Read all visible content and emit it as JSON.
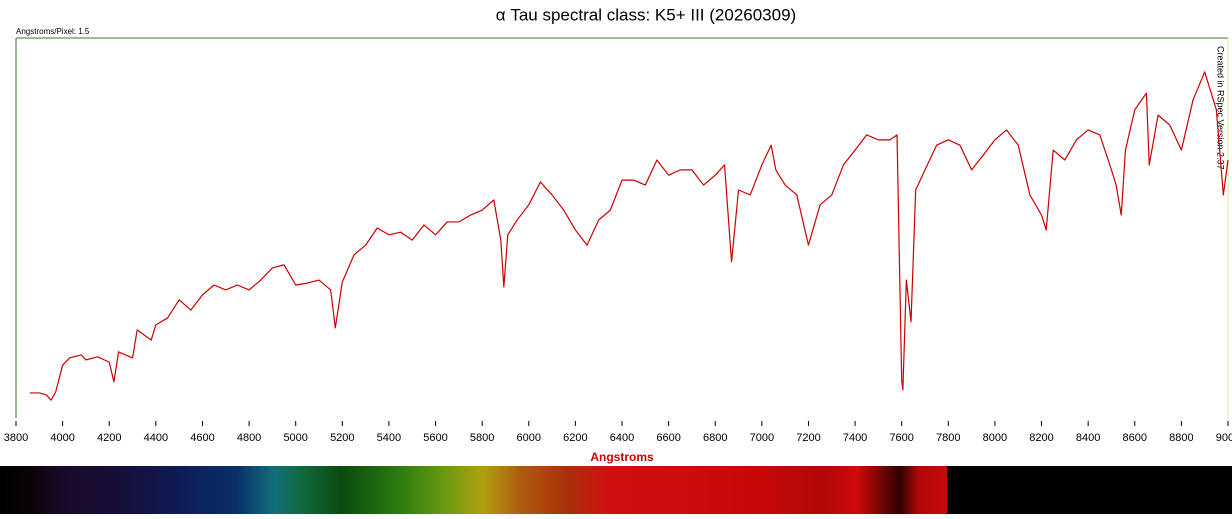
{
  "chart_data": {
    "type": "line",
    "title": "α Tau spectral class: K5+ III (20260309)",
    "xlabel": "Angstroms",
    "annotations": [
      "Angstroms/Pixel: 1.5",
      "Created in RSpec Version 2.37"
    ],
    "xlim": [
      3800,
      9000
    ],
    "ylim": [
      0,
      1
    ],
    "xticks": [
      3800,
      4000,
      4200,
      4400,
      4600,
      4800,
      5000,
      5200,
      5400,
      5600,
      5800,
      6000,
      6200,
      6400,
      6600,
      6800,
      7000,
      7200,
      7400,
      7600,
      7800,
      8000,
      8200,
      8400,
      8600,
      8800,
      9000
    ],
    "series": [
      {
        "color": "#cc0000",
        "x": [
          3860,
          3900,
          3930,
          3950,
          3970,
          4000,
          4030,
          4080,
          4100,
          4150,
          4200,
          4220,
          4240,
          4300,
          4320,
          4380,
          4400,
          4450,
          4500,
          4550,
          4600,
          4650,
          4700,
          4750,
          4800,
          4850,
          4900,
          4950,
          5000,
          5050,
          5100,
          5150,
          5170,
          5200,
          5250,
          5300,
          5350,
          5400,
          5450,
          5500,
          5550,
          5600,
          5650,
          5700,
          5750,
          5800,
          5850,
          5880,
          5893,
          5910,
          5950,
          6000,
          6050,
          6100,
          6150,
          6200,
          6250,
          6300,
          6350,
          6400,
          6450,
          6500,
          6550,
          6600,
          6650,
          6700,
          6750,
          6800,
          6840,
          6870,
          6900,
          6950,
          7000,
          7040,
          7060,
          7100,
          7150,
          7200,
          7250,
          7300,
          7350,
          7400,
          7450,
          7500,
          7550,
          7580,
          7600,
          7605,
          7620,
          7640,
          7660,
          7700,
          7750,
          7800,
          7850,
          7900,
          7950,
          8000,
          8050,
          8100,
          8150,
          8200,
          8220,
          8250,
          8300,
          8350,
          8400,
          8450,
          8500,
          8520,
          8542,
          8560,
          8600,
          8650,
          8662,
          8700,
          8750,
          8800,
          8850,
          8900,
          8950,
          8980,
          9000
        ],
        "values": [
          0.066,
          0.066,
          0.061,
          0.047,
          0.068,
          0.139,
          0.158,
          0.166,
          0.153,
          0.161,
          0.147,
          0.095,
          0.174,
          0.158,
          0.232,
          0.205,
          0.245,
          0.263,
          0.311,
          0.284,
          0.324,
          0.35,
          0.337,
          0.35,
          0.337,
          0.363,
          0.395,
          0.403,
          0.35,
          0.355,
          0.363,
          0.337,
          0.237,
          0.358,
          0.429,
          0.455,
          0.5,
          0.482,
          0.489,
          0.468,
          0.508,
          0.482,
          0.516,
          0.516,
          0.534,
          0.547,
          0.574,
          0.468,
          0.345,
          0.482,
          0.521,
          0.561,
          0.621,
          0.587,
          0.547,
          0.495,
          0.455,
          0.521,
          0.547,
          0.626,
          0.626,
          0.613,
          0.679,
          0.639,
          0.653,
          0.653,
          0.613,
          0.639,
          0.666,
          0.411,
          0.6,
          0.587,
          0.666,
          0.718,
          0.653,
          0.613,
          0.587,
          0.455,
          0.561,
          0.587,
          0.666,
          0.705,
          0.745,
          0.732,
          0.732,
          0.745,
          0.1,
          0.074,
          0.363,
          0.253,
          0.6,
          0.653,
          0.718,
          0.732,
          0.718,
          0.653,
          0.692,
          0.732,
          0.758,
          0.718,
          0.587,
          0.534,
          0.495,
          0.705,
          0.679,
          0.732,
          0.758,
          0.745,
          0.653,
          0.613,
          0.534,
          0.705,
          0.811,
          0.855,
          0.666,
          0.797,
          0.771,
          0.705,
          0.837,
          0.911,
          0.811,
          0.587,
          0.679
        ]
      }
    ]
  }
}
